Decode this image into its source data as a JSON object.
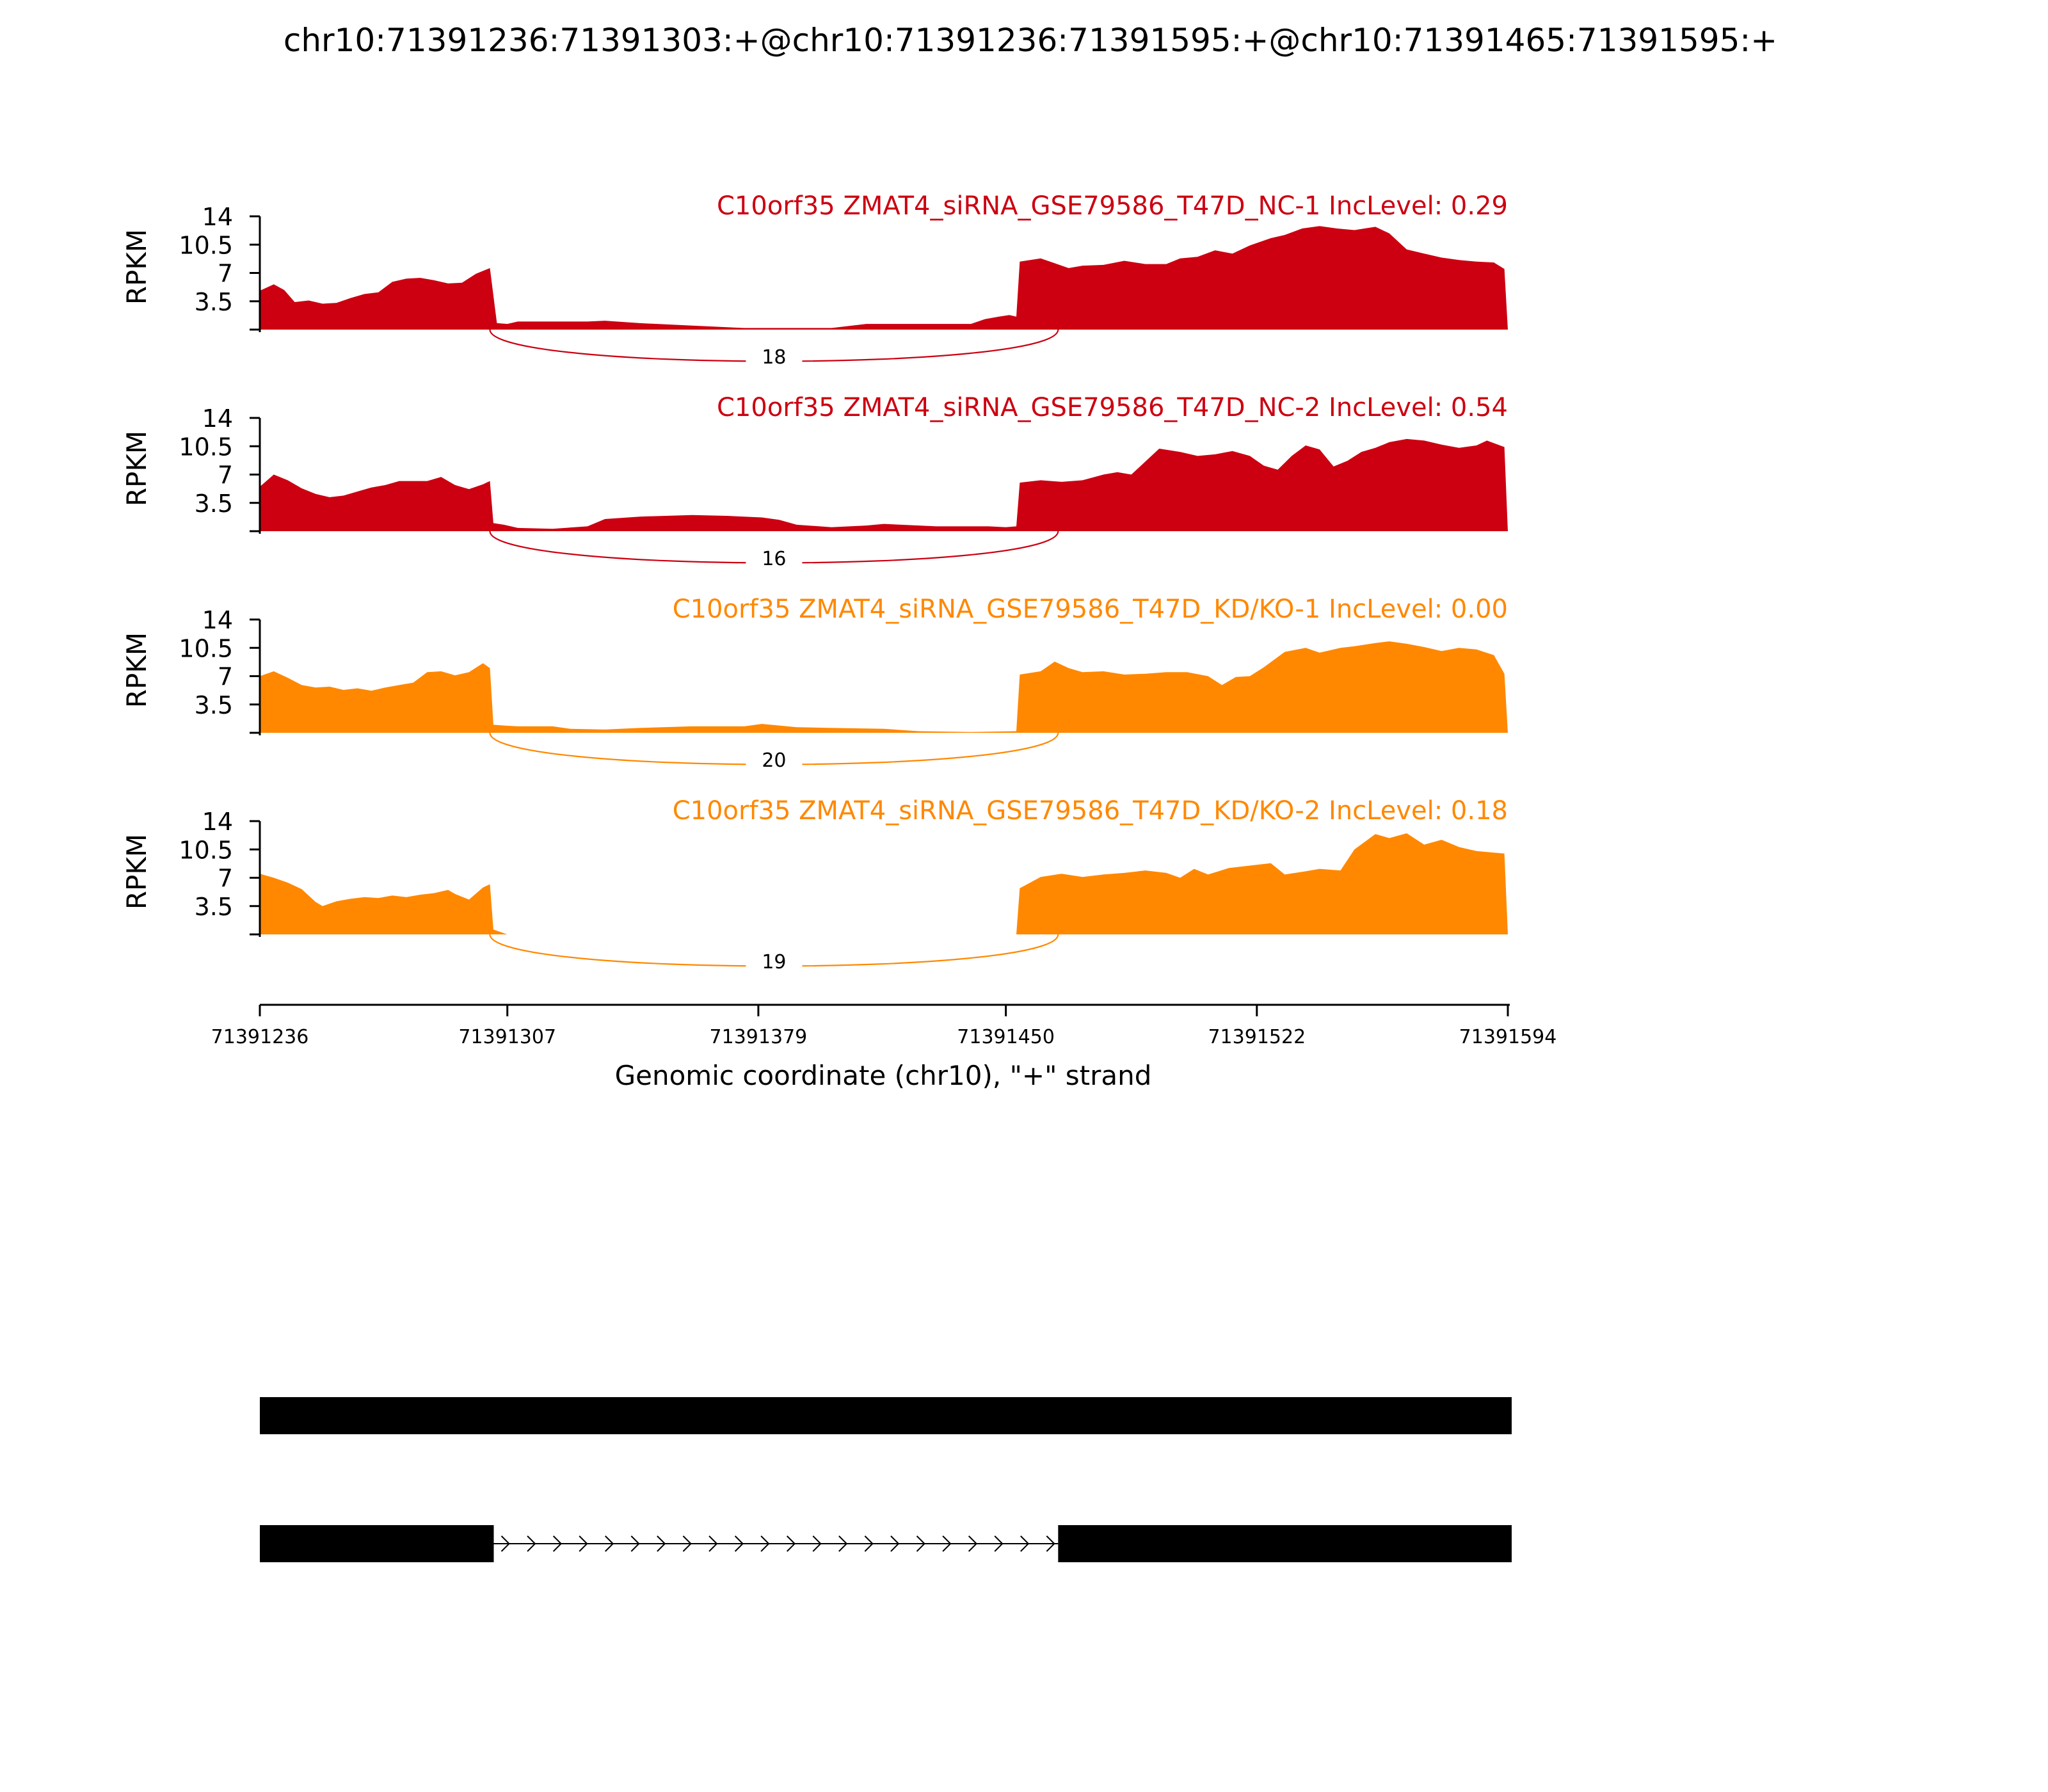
{
  "chart_data": {
    "type": "area",
    "title": "chr10:71391236:71391303:+@chr10:71391236:71391595:+@chr10:71391465:71391595:+",
    "xlabel": "Genomic coordinate (chr10), \"+\" strand",
    "ylabel": "RPKM",
    "xlim": [
      71391236,
      71391594
    ],
    "ylim": [
      0,
      14
    ],
    "y_ticks": [
      3.5,
      7,
      10.5,
      14
    ],
    "y_tick_labels": [
      "3.5",
      "7",
      "10.5",
      "14"
    ],
    "x_ticks": [
      71391236,
      71391307,
      71391379,
      71391450,
      71391522,
      71391594
    ],
    "x_tick_labels": [
      "71391236",
      "71391307",
      "71391379",
      "71391450",
      "71391522",
      "71391594"
    ],
    "junction": {
      "start": 71391302,
      "end": 71391465
    },
    "colors": {
      "NC": "#cc0011",
      "KD": "#ff8800"
    },
    "series": [
      {
        "name": "C10orf35 ZMAT4_siRNA_GSE79586_T47D_NC-1 IncLevel: 0.29",
        "color_key": "NC",
        "junction_count": "18",
        "coverage": [
          [
            71391236,
            4.8
          ],
          [
            71391240,
            5.6
          ],
          [
            71391243,
            4.9
          ],
          [
            71391246,
            3.4
          ],
          [
            71391250,
            3.6
          ],
          [
            71391254,
            3.2
          ],
          [
            71391258,
            3.3
          ],
          [
            71391262,
            3.9
          ],
          [
            71391266,
            4.4
          ],
          [
            71391270,
            4.6
          ],
          [
            71391274,
            5.9
          ],
          [
            71391278,
            6.3
          ],
          [
            71391282,
            6.4
          ],
          [
            71391286,
            6.1
          ],
          [
            71391290,
            5.7
          ],
          [
            71391294,
            5.8
          ],
          [
            71391298,
            6.9
          ],
          [
            71391302,
            7.6
          ],
          [
            71391304,
            0.8
          ],
          [
            71391307,
            0.7
          ],
          [
            71391310,
            1.0
          ],
          [
            71391330,
            1.0
          ],
          [
            71391335,
            1.1
          ],
          [
            71391345,
            0.8
          ],
          [
            71391360,
            0.5
          ],
          [
            71391375,
            0.2
          ],
          [
            71391400,
            0.2
          ],
          [
            71391410,
            0.7
          ],
          [
            71391440,
            0.7
          ],
          [
            71391444,
            1.3
          ],
          [
            71391448,
            1.6
          ],
          [
            71391451,
            1.8
          ],
          [
            71391453,
            1.6
          ],
          [
            71391454,
            8.4
          ],
          [
            71391460,
            8.8
          ],
          [
            71391464,
            8.2
          ],
          [
            71391468,
            7.6
          ],
          [
            71391472,
            7.9
          ],
          [
            71391478,
            8.0
          ],
          [
            71391484,
            8.5
          ],
          [
            71391490,
            8.1
          ],
          [
            71391496,
            8.1
          ],
          [
            71391500,
            8.8
          ],
          [
            71391505,
            9.0
          ],
          [
            71391510,
            9.8
          ],
          [
            71391515,
            9.4
          ],
          [
            71391520,
            10.4
          ],
          [
            71391526,
            11.3
          ],
          [
            71391530,
            11.7
          ],
          [
            71391535,
            12.5
          ],
          [
            71391540,
            12.8
          ],
          [
            71391545,
            12.5
          ],
          [
            71391550,
            12.3
          ],
          [
            71391556,
            12.7
          ],
          [
            71391560,
            11.9
          ],
          [
            71391565,
            9.9
          ],
          [
            71391570,
            9.4
          ],
          [
            71391575,
            8.9
          ],
          [
            71391580,
            8.6
          ],
          [
            71391585,
            8.4
          ],
          [
            71391590,
            8.3
          ],
          [
            71391593,
            7.5
          ],
          [
            71391594,
            0.0
          ]
        ]
      },
      {
        "name": "C10orf35 ZMAT4_siRNA_GSE79586_T47D_NC-2 IncLevel: 0.54",
        "color_key": "NC",
        "junction_count": "16",
        "coverage": [
          [
            71391236,
            5.5
          ],
          [
            71391240,
            7.0
          ],
          [
            71391244,
            6.3
          ],
          [
            71391248,
            5.3
          ],
          [
            71391252,
            4.6
          ],
          [
            71391256,
            4.2
          ],
          [
            71391260,
            4.4
          ],
          [
            71391264,
            4.9
          ],
          [
            71391268,
            5.4
          ],
          [
            71391272,
            5.7
          ],
          [
            71391276,
            6.2
          ],
          [
            71391280,
            6.2
          ],
          [
            71391284,
            6.2
          ],
          [
            71391288,
            6.7
          ],
          [
            71391292,
            5.7
          ],
          [
            71391296,
            5.2
          ],
          [
            71391300,
            5.8
          ],
          [
            71391302,
            6.2
          ],
          [
            71391303,
            1.0
          ],
          [
            71391306,
            0.8
          ],
          [
            71391310,
            0.4
          ],
          [
            71391320,
            0.3
          ],
          [
            71391330,
            0.6
          ],
          [
            71391335,
            1.5
          ],
          [
            71391345,
            1.8
          ],
          [
            71391360,
            2.0
          ],
          [
            71391370,
            1.9
          ],
          [
            71391380,
            1.7
          ],
          [
            71391385,
            1.4
          ],
          [
            71391390,
            0.8
          ],
          [
            71391400,
            0.5
          ],
          [
            71391410,
            0.7
          ],
          [
            71391415,
            0.9
          ],
          [
            71391430,
            0.6
          ],
          [
            71391445,
            0.6
          ],
          [
            71391450,
            0.5
          ],
          [
            71391453,
            0.6
          ],
          [
            71391454,
            6.0
          ],
          [
            71391460,
            6.3
          ],
          [
            71391466,
            6.1
          ],
          [
            71391472,
            6.3
          ],
          [
            71391478,
            7.0
          ],
          [
            71391482,
            7.3
          ],
          [
            71391486,
            7.0
          ],
          [
            71391490,
            8.6
          ],
          [
            71391494,
            10.2
          ],
          [
            71391500,
            9.8
          ],
          [
            71391505,
            9.3
          ],
          [
            71391510,
            9.5
          ],
          [
            71391515,
            9.9
          ],
          [
            71391520,
            9.3
          ],
          [
            71391524,
            8.1
          ],
          [
            71391528,
            7.6
          ],
          [
            71391532,
            9.3
          ],
          [
            71391536,
            10.6
          ],
          [
            71391540,
            10.1
          ],
          [
            71391544,
            8.0
          ],
          [
            71391548,
            8.7
          ],
          [
            71391552,
            9.8
          ],
          [
            71391556,
            10.3
          ],
          [
            71391560,
            11.0
          ],
          [
            71391565,
            11.4
          ],
          [
            71391570,
            11.2
          ],
          [
            71391575,
            10.7
          ],
          [
            71391580,
            10.3
          ],
          [
            71391585,
            10.6
          ],
          [
            71391588,
            11.2
          ],
          [
            71391593,
            10.4
          ],
          [
            71391594,
            0.0
          ]
        ]
      },
      {
        "name": "C10orf35 ZMAT4_siRNA_GSE79586_T47D_KD/KO-1 IncLevel: 0.00",
        "color_key": "KD",
        "junction_count": "20",
        "coverage": [
          [
            71391236,
            7.0
          ],
          [
            71391240,
            7.6
          ],
          [
            71391244,
            6.8
          ],
          [
            71391248,
            5.9
          ],
          [
            71391252,
            5.6
          ],
          [
            71391256,
            5.7
          ],
          [
            71391260,
            5.3
          ],
          [
            71391264,
            5.5
          ],
          [
            71391268,
            5.2
          ],
          [
            71391272,
            5.6
          ],
          [
            71391276,
            5.9
          ],
          [
            71391280,
            6.2
          ],
          [
            71391284,
            7.5
          ],
          [
            71391288,
            7.6
          ],
          [
            71391292,
            7.1
          ],
          [
            71391296,
            7.5
          ],
          [
            71391300,
            8.6
          ],
          [
            71391302,
            8.0
          ],
          [
            71391303,
            1.0
          ],
          [
            71391306,
            0.9
          ],
          [
            71391310,
            0.8
          ],
          [
            71391320,
            0.8
          ],
          [
            71391325,
            0.5
          ],
          [
            71391335,
            0.4
          ],
          [
            71391345,
            0.6
          ],
          [
            71391360,
            0.8
          ],
          [
            71391375,
            0.8
          ],
          [
            71391380,
            1.1
          ],
          [
            71391390,
            0.7
          ],
          [
            71391400,
            0.6
          ],
          [
            71391415,
            0.5
          ],
          [
            71391425,
            0.2
          ],
          [
            71391440,
            0.1
          ],
          [
            71391453,
            0.2
          ],
          [
            71391454,
            7.2
          ],
          [
            71391460,
            7.6
          ],
          [
            71391464,
            8.8
          ],
          [
            71391468,
            8.0
          ],
          [
            71391472,
            7.5
          ],
          [
            71391478,
            7.6
          ],
          [
            71391484,
            7.2
          ],
          [
            71391490,
            7.3
          ],
          [
            71391496,
            7.5
          ],
          [
            71391502,
            7.5
          ],
          [
            71391508,
            7.0
          ],
          [
            71391512,
            5.9
          ],
          [
            71391516,
            6.9
          ],
          [
            71391520,
            7.0
          ],
          [
            71391524,
            8.1
          ],
          [
            71391530,
            10.0
          ],
          [
            71391536,
            10.5
          ],
          [
            71391540,
            9.9
          ],
          [
            71391546,
            10.5
          ],
          [
            71391550,
            10.7
          ],
          [
            71391556,
            11.1
          ],
          [
            71391560,
            11.3
          ],
          [
            71391565,
            11.0
          ],
          [
            71391570,
            10.6
          ],
          [
            71391575,
            10.1
          ],
          [
            71391580,
            10.5
          ],
          [
            71391585,
            10.3
          ],
          [
            71391590,
            9.6
          ],
          [
            71391593,
            7.3
          ],
          [
            71391594,
            0.0
          ]
        ]
      },
      {
        "name": "C10orf35 ZMAT4_siRNA_GSE79586_T47D_KD/KO-2 IncLevel: 0.18",
        "color_key": "KD",
        "junction_count": "19",
        "coverage": [
          [
            71391236,
            7.5
          ],
          [
            71391240,
            7.0
          ],
          [
            71391244,
            6.4
          ],
          [
            71391248,
            5.6
          ],
          [
            71391252,
            4.0
          ],
          [
            71391254,
            3.5
          ],
          [
            71391258,
            4.1
          ],
          [
            71391262,
            4.4
          ],
          [
            71391266,
            4.6
          ],
          [
            71391270,
            4.5
          ],
          [
            71391274,
            4.8
          ],
          [
            71391278,
            4.6
          ],
          [
            71391282,
            4.9
          ],
          [
            71391286,
            5.1
          ],
          [
            71391290,
            5.5
          ],
          [
            71391292,
            5.0
          ],
          [
            71391296,
            4.3
          ],
          [
            71391300,
            5.8
          ],
          [
            71391302,
            6.2
          ],
          [
            71391303,
            0.6
          ],
          [
            71391307,
            0.0
          ],
          [
            71391453,
            0.0
          ],
          [
            71391454,
            5.7
          ],
          [
            71391460,
            7.1
          ],
          [
            71391466,
            7.5
          ],
          [
            71391472,
            7.1
          ],
          [
            71391478,
            7.4
          ],
          [
            71391484,
            7.6
          ],
          [
            71391490,
            7.9
          ],
          [
            71391496,
            7.6
          ],
          [
            71391500,
            7.0
          ],
          [
            71391504,
            8.1
          ],
          [
            71391508,
            7.4
          ],
          [
            71391514,
            8.2
          ],
          [
            71391520,
            8.5
          ],
          [
            71391526,
            8.8
          ],
          [
            71391530,
            7.4
          ],
          [
            71391536,
            7.8
          ],
          [
            71391540,
            8.1
          ],
          [
            71391546,
            7.9
          ],
          [
            71391550,
            10.5
          ],
          [
            71391556,
            12.4
          ],
          [
            71391560,
            11.9
          ],
          [
            71391565,
            12.5
          ],
          [
            71391570,
            11.1
          ],
          [
            71391575,
            11.7
          ],
          [
            71391580,
            10.8
          ],
          [
            71391585,
            10.3
          ],
          [
            71391590,
            10.1
          ],
          [
            71391593,
            10.0
          ],
          [
            71391594,
            0.0
          ]
        ]
      }
    ],
    "isoforms": [
      {
        "exons": [
          [
            71391236,
            71391594
          ]
        ]
      },
      {
        "exons": [
          [
            71391236,
            71391302
          ],
          [
            71391465,
            71391594
          ]
        ]
      }
    ]
  }
}
